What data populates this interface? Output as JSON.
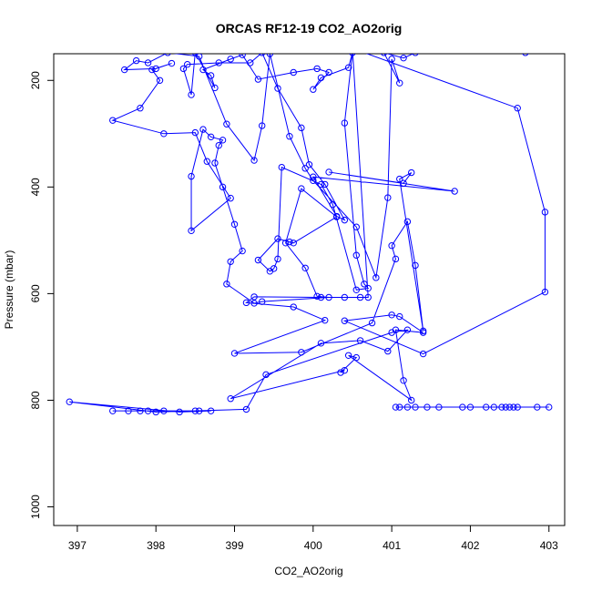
{
  "chart_data": {
    "type": "line",
    "title": "ORCAS RF12-19 CO2_AO2orig",
    "xlabel": "CO2_AO2orig",
    "ylabel": "Pressure (mbar)",
    "xlim": [
      396.7,
      403.2
    ],
    "ylim": [
      1035,
      150
    ],
    "y_reversed": true,
    "x_ticks": [
      397,
      398,
      399,
      400,
      401,
      402,
      403
    ],
    "y_ticks": [
      200,
      400,
      600,
      800,
      1000
    ],
    "grid": false,
    "series": [
      {
        "color": "#0000ff",
        "marker": "open-circle",
        "points": [
          [
            397.45,
            820
          ],
          [
            397.65,
            820
          ],
          [
            397.8,
            820
          ],
          [
            397.9,
            820
          ],
          [
            398.1,
            820
          ],
          [
            398.5,
            820
          ],
          [
            398.55,
            820
          ],
          [
            398.7,
            820
          ],
          [
            398.3,
            822
          ],
          [
            396.9,
            803
          ],
          [
            398.0,
            822
          ],
          [
            399.15,
            817
          ],
          [
            399.4,
            752
          ],
          [
            401.0,
            673
          ],
          [
            401.2,
            668
          ],
          [
            400.95,
            708
          ],
          [
            400.6,
            688
          ],
          [
            400.1,
            693
          ],
          [
            398.95,
            797
          ],
          [
            400.4,
            744
          ],
          [
            400.35,
            748
          ],
          [
            400.55,
            720
          ],
          [
            400.45,
            716
          ],
          [
            401.25,
            800
          ],
          [
            401.15,
            763
          ],
          [
            401.05,
            668
          ],
          [
            401.4,
            673
          ],
          [
            401.1,
            643
          ],
          [
            401.0,
            640
          ],
          [
            400.4,
            651
          ],
          [
            401.4,
            713
          ],
          [
            402.95,
            597
          ],
          [
            402.95,
            447
          ],
          [
            402.6,
            252
          ],
          [
            400.5,
            140
          ],
          [
            400.7,
            607
          ],
          [
            400.6,
            607
          ],
          [
            400.4,
            607
          ],
          [
            400.1,
            607
          ],
          [
            399.25,
            606
          ],
          [
            399.15,
            617
          ],
          [
            399.75,
            625
          ],
          [
            400.15,
            650
          ],
          [
            399.0,
            712
          ],
          [
            399.85,
            710
          ],
          [
            400.75,
            655
          ],
          [
            401.05,
            535
          ],
          [
            401.0,
            510
          ],
          [
            401.2,
            465
          ],
          [
            401.3,
            547
          ],
          [
            401.4,
            670
          ],
          [
            401.1,
            385
          ],
          [
            401.25,
            373
          ],
          [
            401.15,
            393
          ],
          [
            400.2,
            372
          ],
          [
            401.8,
            408
          ],
          [
            400.0,
            381
          ],
          [
            400.3,
            455
          ],
          [
            400.4,
            462
          ],
          [
            400.15,
            395
          ],
          [
            399.95,
            358
          ],
          [
            399.85,
            289
          ],
          [
            399.55,
            215
          ],
          [
            399.35,
            148
          ],
          [
            399.2,
            167
          ],
          [
            398.8,
            167
          ],
          [
            398.4,
            170
          ],
          [
            398.35,
            178
          ],
          [
            398.45,
            227
          ],
          [
            398.5,
            148
          ],
          [
            398.75,
            214
          ],
          [
            398.7,
            191
          ],
          [
            398.6,
            180
          ],
          [
            398.95,
            160
          ],
          [
            399.1,
            152
          ],
          [
            399.3,
            198
          ],
          [
            399.75,
            185
          ],
          [
            400.05,
            178
          ],
          [
            400.2,
            185
          ],
          [
            400.0,
            217
          ],
          [
            400.1,
            195
          ],
          [
            400.45,
            176
          ],
          [
            400.5,
            148
          ],
          [
            400.4,
            280
          ],
          [
            400.55,
            528
          ],
          [
            400.65,
            582
          ],
          [
            400.7,
            590
          ],
          [
            400.55,
            593
          ],
          [
            400.25,
            433
          ],
          [
            400.1,
            395
          ],
          [
            399.6,
            363
          ],
          [
            399.55,
            535
          ],
          [
            399.5,
            553
          ],
          [
            399.45,
            558
          ],
          [
            399.3,
            537
          ],
          [
            399.55,
            497
          ],
          [
            399.7,
            503
          ],
          [
            399.75,
            505
          ],
          [
            400.3,
            456
          ],
          [
            399.85,
            403
          ],
          [
            399.65,
            505
          ],
          [
            399.9,
            552
          ],
          [
            400.05,
            605
          ],
          [
            400.2,
            607
          ],
          [
            399.35,
            615
          ],
          [
            399.25,
            618
          ],
          [
            398.9,
            582
          ],
          [
            398.95,
            540
          ],
          [
            399.1,
            520
          ],
          [
            399.0,
            470
          ],
          [
            398.85,
            400
          ],
          [
            398.75,
            355
          ],
          [
            398.8,
            322
          ],
          [
            398.85,
            312
          ],
          [
            398.7,
            306
          ],
          [
            398.6,
            292
          ],
          [
            398.45,
            380
          ],
          [
            398.45,
            482
          ],
          [
            398.95,
            421
          ],
          [
            398.65,
            352
          ],
          [
            398.5,
            298
          ],
          [
            398.1,
            300
          ],
          [
            397.45,
            275
          ],
          [
            397.8,
            252
          ],
          [
            398.05,
            200
          ],
          [
            397.95,
            180
          ],
          [
            398.2,
            168
          ],
          [
            398.0,
            178
          ],
          [
            397.6,
            180
          ],
          [
            397.75,
            163
          ],
          [
            397.9,
            167
          ],
          [
            398.15,
            148
          ],
          [
            398.55,
            155
          ],
          [
            398.9,
            282
          ],
          [
            399.25,
            350
          ],
          [
            399.35,
            285
          ],
          [
            399.45,
            150
          ],
          [
            399.7,
            305
          ],
          [
            399.9,
            365
          ],
          [
            400.0,
            388
          ],
          [
            400.55,
            475
          ],
          [
            400.8,
            570
          ],
          [
            400.95,
            420
          ],
          [
            401.0,
            160
          ],
          [
            401.1,
            205
          ],
          [
            400.9,
            148
          ],
          [
            401.15,
            158
          ],
          [
            401.3,
            148
          ],
          [
            402.7,
            148
          ]
        ],
        "points_b": [
          [
            401.05,
            813
          ],
          [
            401.1,
            813
          ],
          [
            401.2,
            813
          ],
          [
            401.3,
            813
          ],
          [
            401.45,
            813
          ],
          [
            401.6,
            813
          ],
          [
            401.9,
            813
          ],
          [
            402.0,
            813
          ],
          [
            402.2,
            813
          ],
          [
            402.3,
            813
          ],
          [
            402.4,
            813
          ],
          [
            402.45,
            813
          ],
          [
            402.5,
            813
          ],
          [
            402.55,
            813
          ],
          [
            402.6,
            813
          ],
          [
            402.85,
            813
          ],
          [
            403.0,
            813
          ]
        ]
      }
    ]
  }
}
